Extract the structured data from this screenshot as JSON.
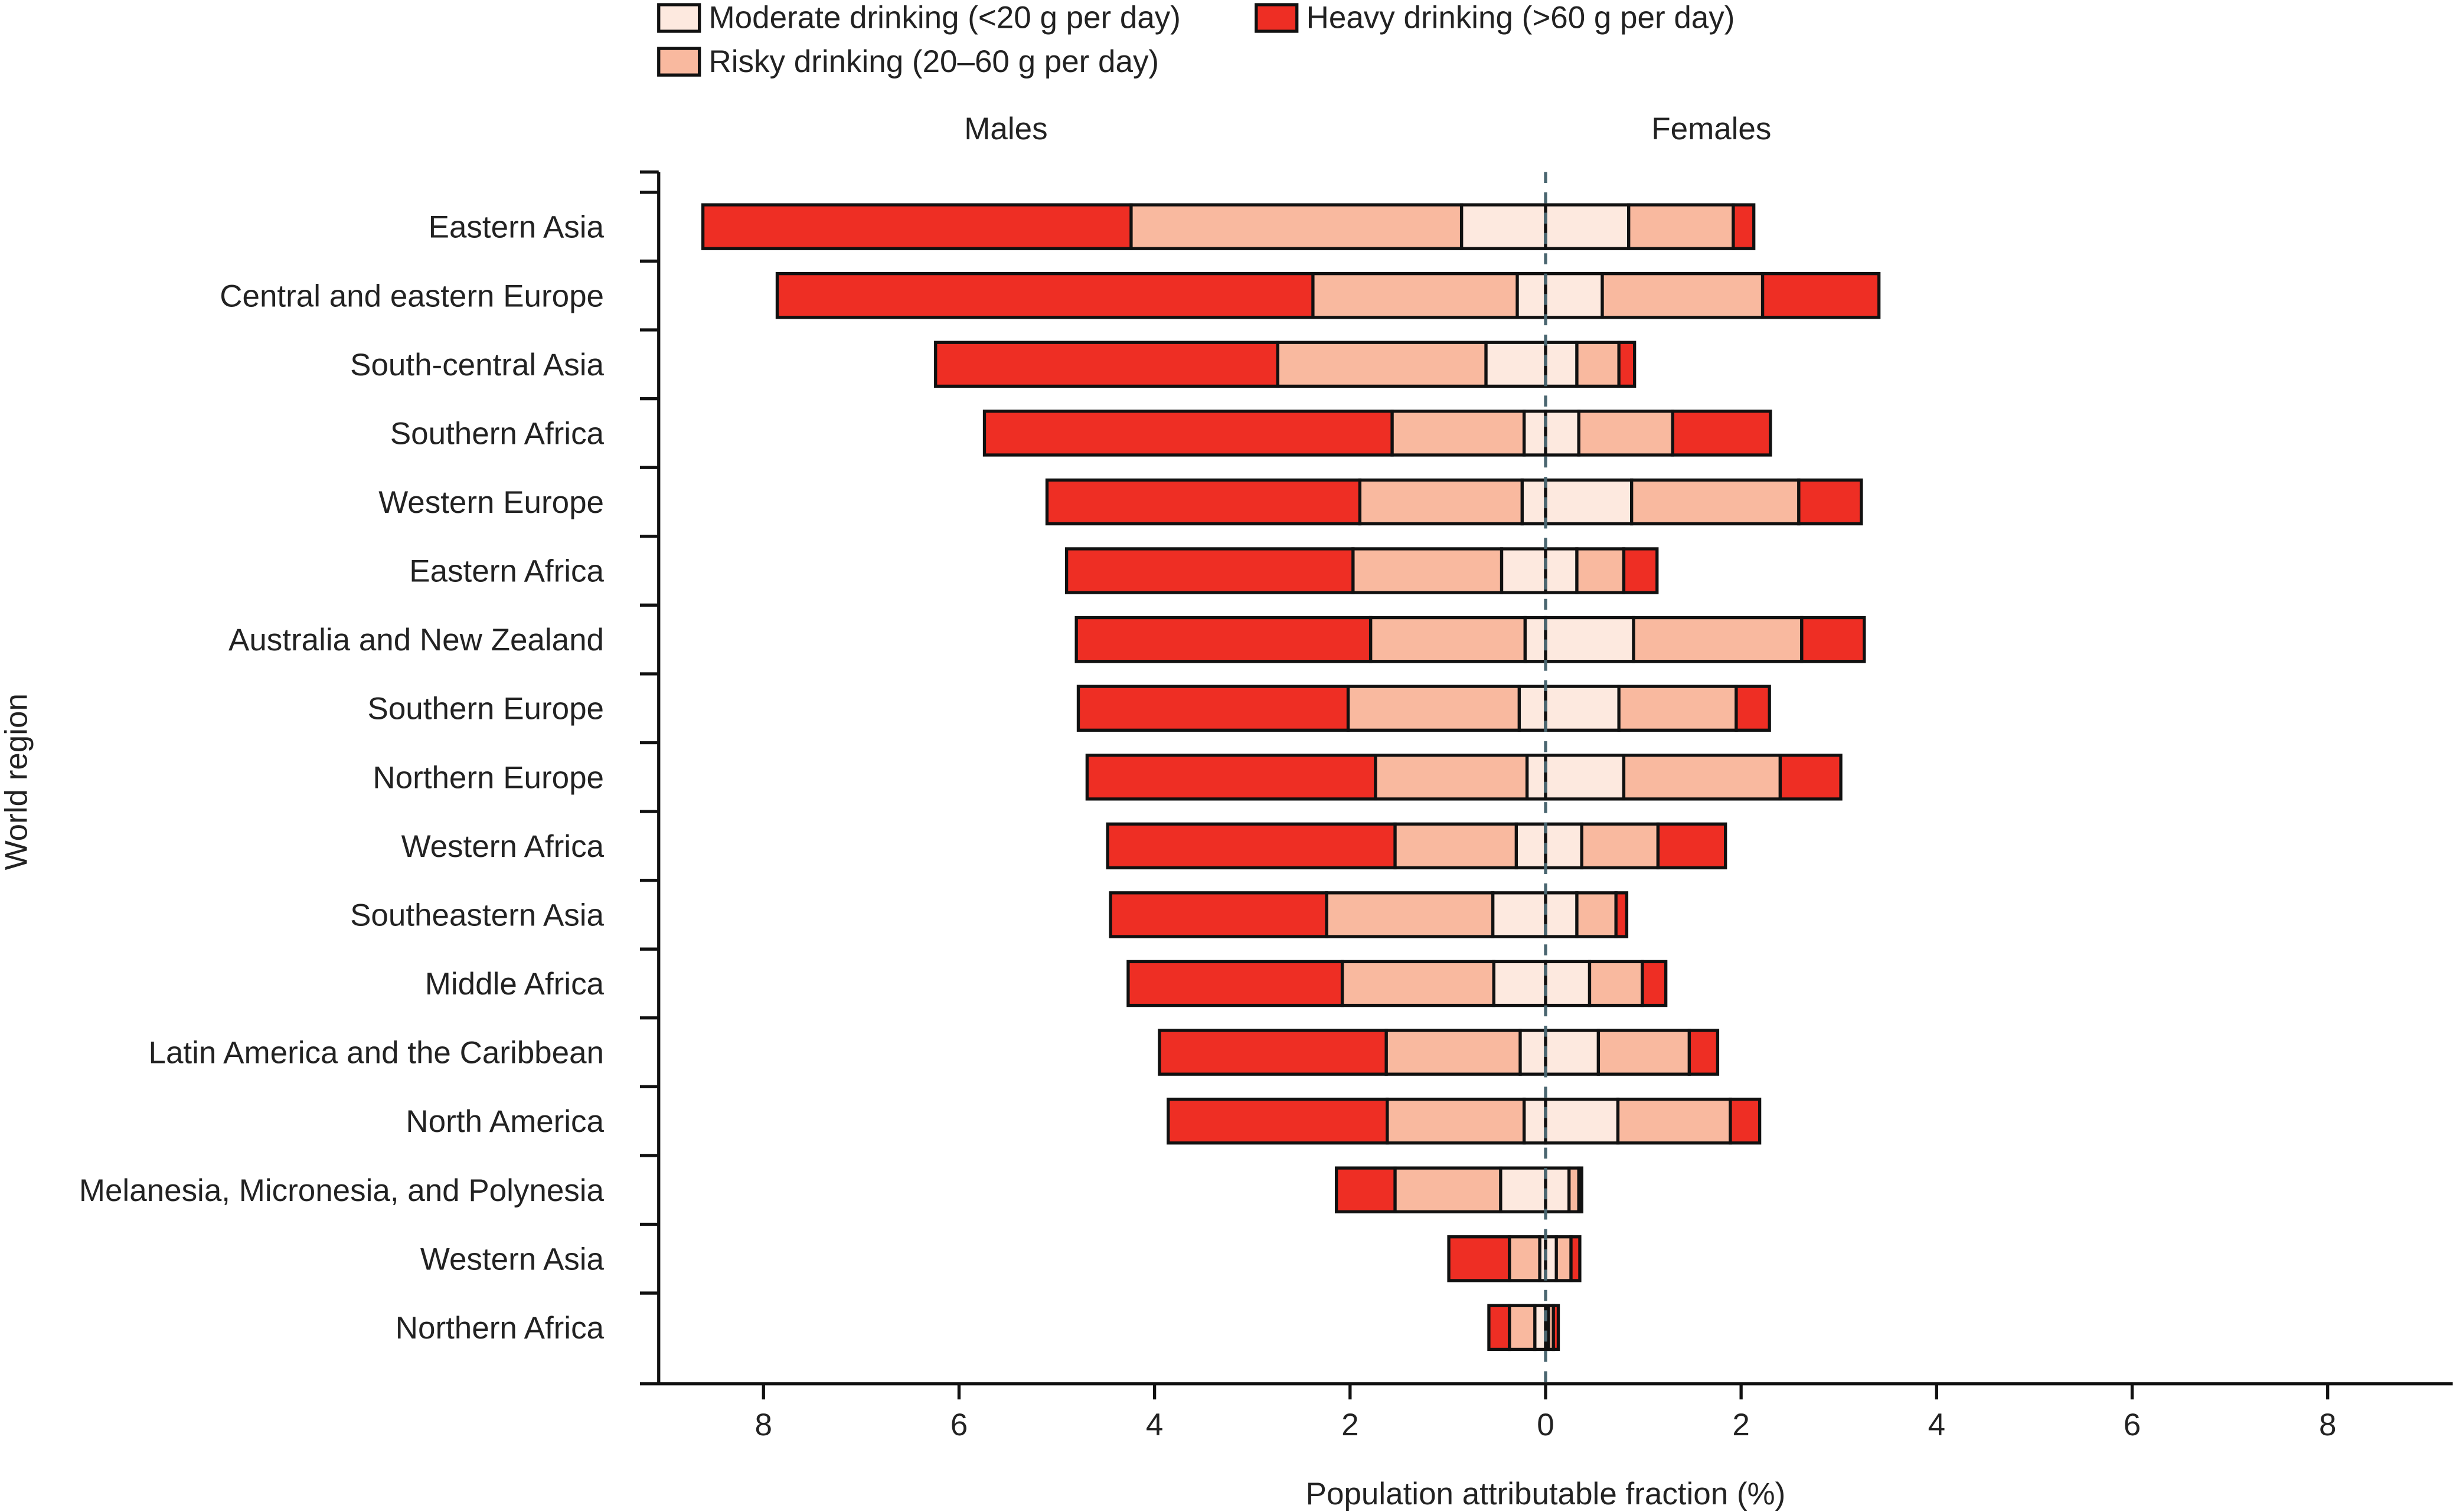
{
  "chart_data": {
    "type": "bar",
    "orientation": "horizontal-diverging-stacked",
    "xlabel": "Population attributable fraction (%)",
    "ylabel": "World region",
    "panel_labels": {
      "left": "Males",
      "right": "Females"
    },
    "xlim": [
      -9,
      9
    ],
    "xticks": [
      -8,
      -6,
      -4,
      -2,
      0,
      2,
      4,
      6,
      8
    ],
    "xtick_labels": [
      "8",
      "6",
      "4",
      "2",
      "0",
      "2",
      "4",
      "6",
      "8"
    ],
    "grid": false,
    "legend_placement": "top",
    "legend": [
      {
        "key": "moderate",
        "label": "Moderate drinking (<20 g per day)",
        "color": "#fde9df"
      },
      {
        "key": "heavy",
        "label": "Heavy drinking (>60 g per day)",
        "color": "#ee2e24"
      },
      {
        "key": "risky",
        "label": "Risky drinking (20–60 g per day)",
        "color": "#f9b99f"
      }
    ],
    "zero_line_color": "#4a6670",
    "categories": [
      "Eastern Asia",
      "Central and eastern Europe",
      "South-central Asia",
      "Southern Africa",
      "Western Europe",
      "Eastern Africa",
      "Australia and New Zealand",
      "Southern Europe",
      "Northern Europe",
      "Western Africa",
      "Southeastern Asia",
      "Middle Africa",
      "Latin America and the Caribbean",
      "North America",
      "Melanesia, Micronesia, and Polynesia",
      "Western Asia",
      "Northern Africa"
    ],
    "series": [
      {
        "name": "Males",
        "segments": {
          "moderate": [
            0.86,
            0.29,
            0.61,
            0.22,
            0.24,
            0.45,
            0.21,
            0.27,
            0.19,
            0.3,
            0.54,
            0.53,
            0.26,
            0.22,
            0.46,
            0.06,
            0.11
          ],
          "risky": [
            3.38,
            2.09,
            2.13,
            1.35,
            1.66,
            1.52,
            1.58,
            1.75,
            1.55,
            1.24,
            1.7,
            1.55,
            1.37,
            1.4,
            1.08,
            0.31,
            0.26
          ],
          "heavy": [
            4.38,
            5.48,
            3.5,
            4.17,
            3.2,
            2.93,
            3.01,
            2.76,
            2.95,
            2.94,
            2.21,
            2.19,
            2.32,
            2.24,
            0.6,
            0.62,
            0.21
          ]
        }
      },
      {
        "name": "Females",
        "segments": {
          "moderate": [
            0.85,
            0.58,
            0.32,
            0.34,
            0.88,
            0.32,
            0.9,
            0.75,
            0.8,
            0.37,
            0.32,
            0.45,
            0.54,
            0.74,
            0.24,
            0.11,
            0.03
          ],
          "risky": [
            1.07,
            1.64,
            0.43,
            0.96,
            1.71,
            0.48,
            1.72,
            1.2,
            1.6,
            0.78,
            0.4,
            0.54,
            0.93,
            1.15,
            0.1,
            0.15,
            0.05
          ],
          "heavy": [
            0.21,
            1.19,
            0.16,
            1.0,
            0.64,
            0.34,
            0.64,
            0.34,
            0.62,
            0.69,
            0.11,
            0.24,
            0.29,
            0.3,
            0.03,
            0.09,
            0.05
          ]
        }
      }
    ]
  }
}
